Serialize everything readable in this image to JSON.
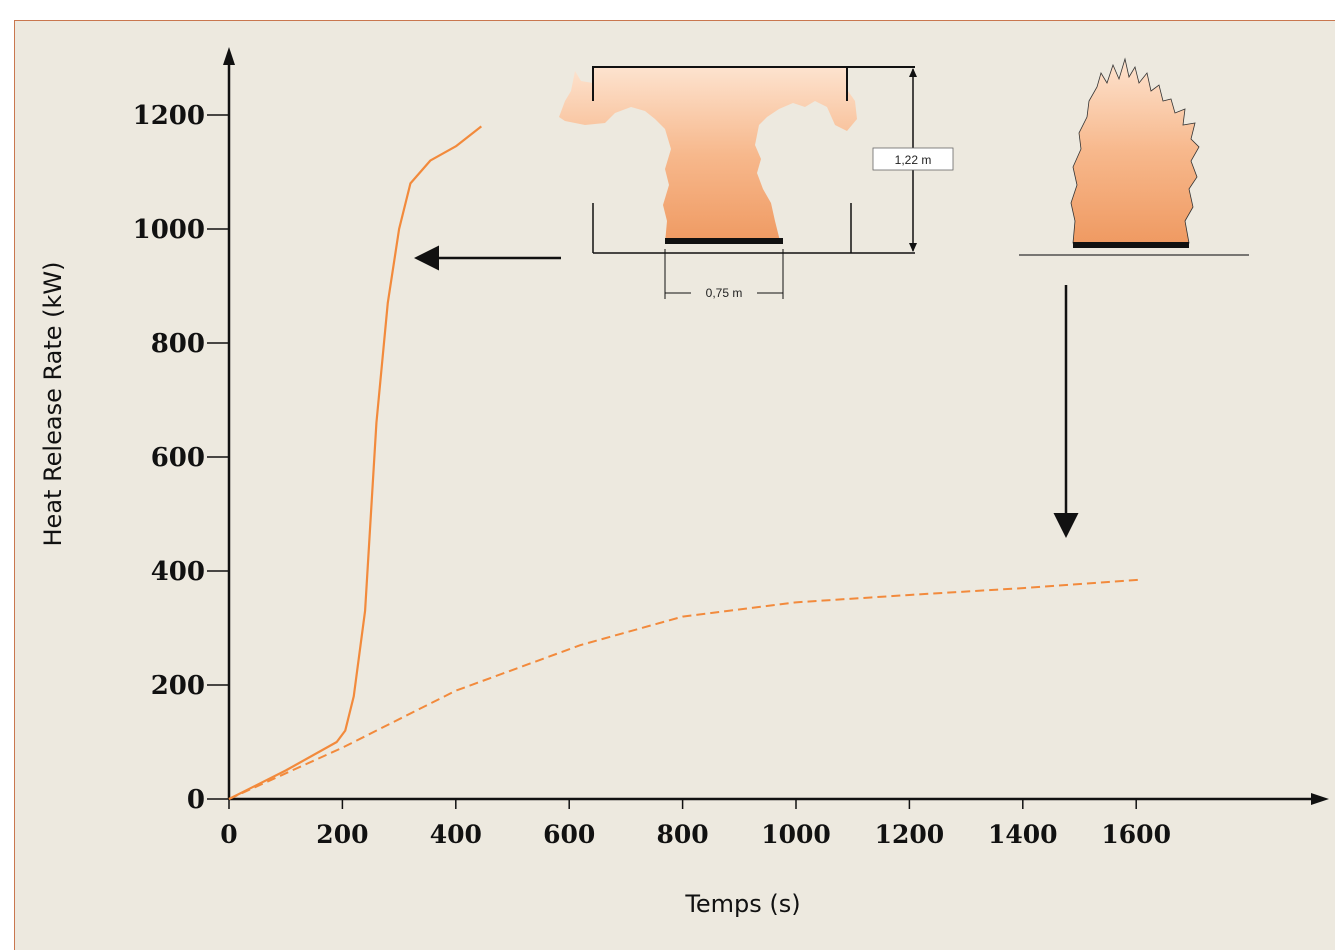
{
  "chart_data": {
    "type": "line",
    "title": "",
    "xlabel": "Temps (s)",
    "ylabel": "Heat Release Rate (kW)",
    "xlim": [
      0,
      1700
    ],
    "ylim": [
      0,
      1200
    ],
    "x_ticks": [
      "0",
      "200",
      "400",
      "600",
      "800",
      "1000",
      "1200",
      "1400",
      "1600"
    ],
    "y_ticks": [
      "0",
      "200",
      "400",
      "600",
      "800",
      "1000",
      "1200"
    ],
    "grid": false,
    "series": [
      {
        "style": "solid",
        "color": "#f28a3c",
        "points": [
          [
            0,
            0
          ],
          [
            100,
            50
          ],
          [
            190,
            100
          ],
          [
            205,
            120
          ],
          [
            220,
            180
          ],
          [
            240,
            330
          ],
          [
            260,
            660
          ],
          [
            280,
            870
          ],
          [
            300,
            1000
          ],
          [
            320,
            1080
          ],
          [
            355,
            1120
          ],
          [
            400,
            1145
          ],
          [
            445,
            1180
          ]
        ]
      },
      {
        "style": "dashed",
        "color": "#f28a3c",
        "points": [
          [
            0,
            0
          ],
          [
            200,
            90
          ],
          [
            400,
            190
          ],
          [
            620,
            270
          ],
          [
            800,
            320
          ],
          [
            1000,
            345
          ],
          [
            1200,
            358
          ],
          [
            1400,
            370
          ],
          [
            1610,
            385
          ]
        ]
      }
    ],
    "annotations": {
      "dimension_height": "1,22 m",
      "dimension_width": "0,75 m"
    }
  },
  "colors": {
    "background": "#ede9df",
    "border": "#c9774f",
    "flame": "#f3a679",
    "series": "#f28a3c"
  }
}
